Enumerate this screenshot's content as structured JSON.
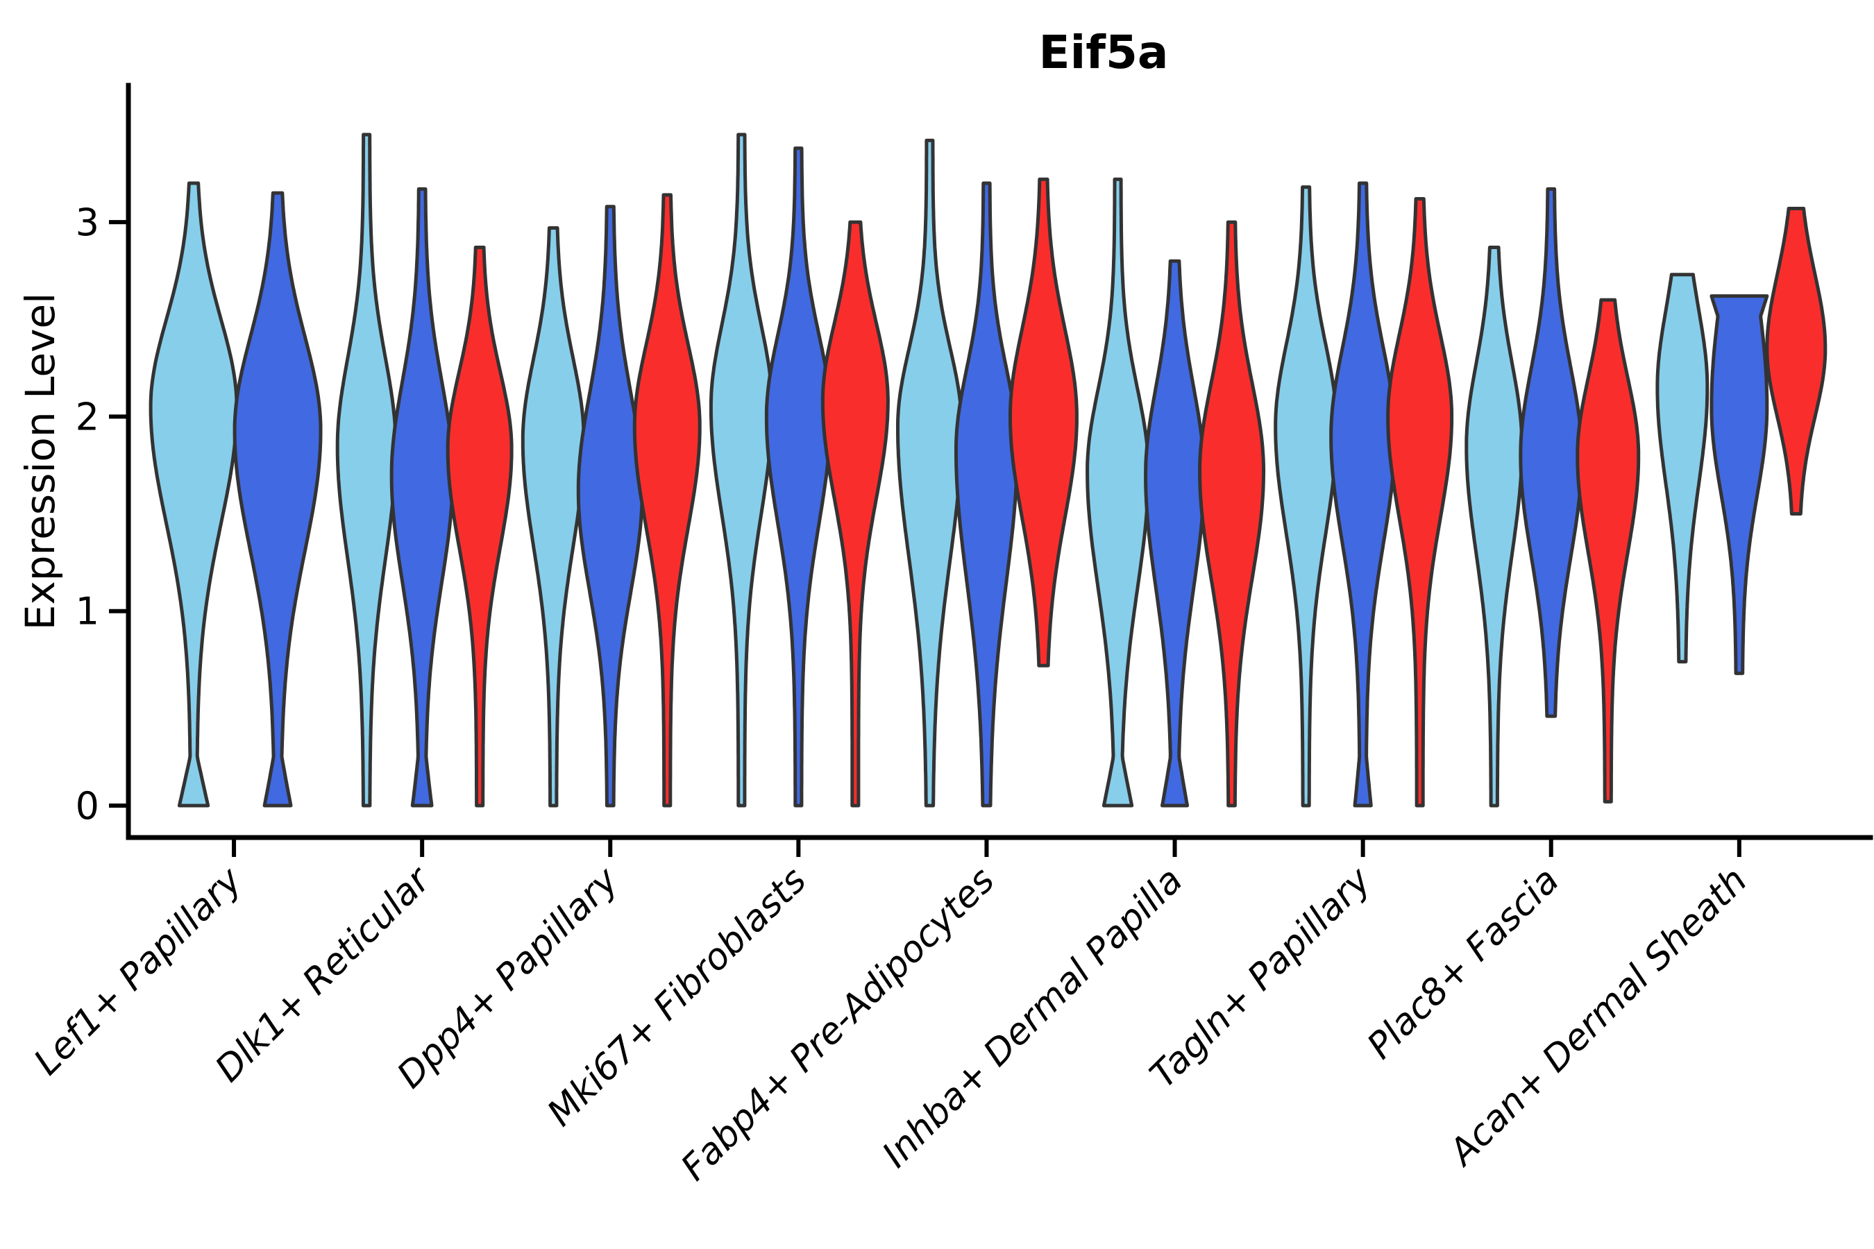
{
  "title": "Eif5a",
  "ylabel": "Expression Level",
  "palette": {
    "skyblue": "#87CEEB",
    "royalblue": "#4169E1",
    "red": "#FA2D2D",
    "edge": "#333333"
  },
  "chart_data": {
    "type": "violin",
    "title": "Eif5a",
    "xlabel": "",
    "ylabel": "Expression Level",
    "ylim": [
      -0.16,
      3.73
    ],
    "yticks": [
      0,
      1,
      2,
      3
    ],
    "grid": false,
    "legend": "none",
    "categories": [
      "Lef1+ Papillary",
      "Dlk1+ Reticular",
      "Dpp4+ Papillary",
      "Mki67+ Fibroblasts",
      "Fabp4+ Pre-Adipocytes",
      "Inhba+ Dermal Papilla",
      "Tagln+ Papillary",
      "Plac8+ Fascia",
      "Acan+ Dermal Sheath"
    ],
    "series": [
      {
        "name": "series_1",
        "color_key": "skyblue"
      },
      {
        "name": "series_2",
        "color_key": "royalblue"
      },
      {
        "name": "series_3",
        "color_key": "red"
      }
    ],
    "violins": [
      {
        "group": 0,
        "color_key": "skyblue",
        "offset": -58,
        "half_width": 62,
        "min": 0,
        "max": 3.2,
        "mode": 2.05,
        "sigma_lo": 0.6,
        "sigma_hi": 0.45,
        "bump0": 16,
        "flat_top": 0
      },
      {
        "group": 0,
        "color_key": "royalblue",
        "offset": 63,
        "half_width": 62,
        "min": 0,
        "max": 3.15,
        "mode": 1.93,
        "sigma_lo": 0.62,
        "sigma_hi": 0.48,
        "bump0": 14,
        "flat_top": 0
      },
      {
        "group": 1,
        "color_key": "skyblue",
        "offset": -80,
        "half_width": 42,
        "min": 0,
        "max": 3.45,
        "mode": 1.85,
        "sigma_lo": 0.58,
        "sigma_hi": 0.45,
        "bump0": 0,
        "flat_top": 0
      },
      {
        "group": 1,
        "color_key": "royalblue",
        "offset": 0,
        "half_width": 44,
        "min": 0,
        "max": 3.17,
        "mode": 1.7,
        "sigma_lo": 0.55,
        "sigma_hi": 0.48,
        "bump0": 9,
        "flat_top": 0
      },
      {
        "group": 1,
        "color_key": "red",
        "offset": 83,
        "half_width": 46,
        "min": 0,
        "max": 2.87,
        "mode": 1.83,
        "sigma_lo": 0.5,
        "sigma_hi": 0.4,
        "bump0": 0,
        "flat_top": 0
      },
      {
        "group": 2,
        "color_key": "skyblue",
        "offset": -82,
        "half_width": 44,
        "min": 0,
        "max": 2.97,
        "mode": 1.88,
        "sigma_lo": 0.55,
        "sigma_hi": 0.42,
        "bump0": 0,
        "flat_top": 0
      },
      {
        "group": 2,
        "color_key": "royalblue",
        "offset": 0,
        "half_width": 46,
        "min": 0,
        "max": 3.08,
        "mode": 1.62,
        "sigma_lo": 0.52,
        "sigma_hi": 0.5,
        "bump0": 0,
        "flat_top": 0
      },
      {
        "group": 2,
        "color_key": "red",
        "offset": 82,
        "half_width": 47,
        "min": 0,
        "max": 3.14,
        "mode": 1.95,
        "sigma_lo": 0.52,
        "sigma_hi": 0.42,
        "bump0": 0,
        "flat_top": 0
      },
      {
        "group": 3,
        "color_key": "skyblue",
        "offset": -82,
        "half_width": 44,
        "min": 0,
        "max": 3.45,
        "mode": 2.05,
        "sigma_lo": 0.55,
        "sigma_hi": 0.42,
        "bump0": 0,
        "flat_top": 0
      },
      {
        "group": 3,
        "color_key": "royalblue",
        "offset": 0,
        "half_width": 46,
        "min": 0,
        "max": 3.38,
        "mode": 2.0,
        "sigma_lo": 0.55,
        "sigma_hi": 0.42,
        "bump0": 0,
        "flat_top": 0
      },
      {
        "group": 3,
        "color_key": "red",
        "offset": 82,
        "half_width": 47,
        "min": 0,
        "max": 3.0,
        "mode": 2.08,
        "sigma_lo": 0.5,
        "sigma_hi": 0.4,
        "bump0": 0,
        "flat_top": 0
      },
      {
        "group": 4,
        "color_key": "skyblue",
        "offset": -82,
        "half_width": 46,
        "min": 0,
        "max": 3.42,
        "mode": 1.95,
        "sigma_lo": 0.68,
        "sigma_hi": 0.4,
        "bump0": 0,
        "flat_top": 0
      },
      {
        "group": 4,
        "color_key": "royalblue",
        "offset": 0,
        "half_width": 44,
        "min": 0,
        "max": 3.2,
        "mode": 1.83,
        "sigma_lo": 0.68,
        "sigma_hi": 0.42,
        "bump0": 0,
        "flat_top": 0
      },
      {
        "group": 4,
        "color_key": "red",
        "offset": 82,
        "half_width": 48,
        "min": 0.72,
        "max": 3.22,
        "mode": 2.0,
        "sigma_lo": 0.52,
        "sigma_hi": 0.45,
        "bump0": 0,
        "flat_top": 0
      },
      {
        "group": 5,
        "color_key": "skyblue",
        "offset": -82,
        "half_width": 44,
        "min": 0,
        "max": 3.22,
        "mode": 1.72,
        "sigma_lo": 0.6,
        "sigma_hi": 0.42,
        "bump0": 15,
        "flat_top": 0
      },
      {
        "group": 5,
        "color_key": "royalblue",
        "offset": 0,
        "half_width": 42,
        "min": 0,
        "max": 2.8,
        "mode": 1.7,
        "sigma_lo": 0.58,
        "sigma_hi": 0.45,
        "bump0": 13,
        "flat_top": 0
      },
      {
        "group": 5,
        "color_key": "red",
        "offset": 82,
        "half_width": 46,
        "min": 0,
        "max": 3.0,
        "mode": 1.72,
        "sigma_lo": 0.55,
        "sigma_hi": 0.45,
        "bump0": 0,
        "flat_top": 0
      },
      {
        "group": 6,
        "color_key": "skyblue",
        "offset": -82,
        "half_width": 44,
        "min": 0,
        "max": 3.18,
        "mode": 1.95,
        "sigma_lo": 0.55,
        "sigma_hi": 0.42,
        "bump0": 0,
        "flat_top": 0
      },
      {
        "group": 6,
        "color_key": "royalblue",
        "offset": 0,
        "half_width": 46,
        "min": 0,
        "max": 3.2,
        "mode": 1.9,
        "sigma_lo": 0.55,
        "sigma_hi": 0.45,
        "bump0": 7,
        "flat_top": 0
      },
      {
        "group": 6,
        "color_key": "red",
        "offset": 82,
        "half_width": 46,
        "min": 0,
        "max": 3.12,
        "mode": 2.0,
        "sigma_lo": 0.52,
        "sigma_hi": 0.42,
        "bump0": 0,
        "flat_top": 0
      },
      {
        "group": 7,
        "color_key": "skyblue",
        "offset": -82,
        "half_width": 40,
        "min": 0,
        "max": 2.87,
        "mode": 1.85,
        "sigma_lo": 0.55,
        "sigma_hi": 0.42,
        "bump0": 0,
        "flat_top": 0
      },
      {
        "group": 7,
        "color_key": "royalblue",
        "offset": 0,
        "half_width": 44,
        "min": 0.46,
        "max": 3.17,
        "mode": 1.8,
        "sigma_lo": 0.52,
        "sigma_hi": 0.45,
        "bump0": 0,
        "flat_top": 0
      },
      {
        "group": 7,
        "color_key": "red",
        "offset": 82,
        "half_width": 44,
        "min": 0.02,
        "max": 2.6,
        "mode": 1.8,
        "sigma_lo": 0.5,
        "sigma_hi": 0.4,
        "bump0": 0,
        "flat_top": 0
      },
      {
        "group": 8,
        "color_key": "skyblue",
        "offset": -82,
        "half_width": 36,
        "min": 0.74,
        "max": 2.73,
        "mode": 2.15,
        "sigma_lo": 0.5,
        "sigma_hi": 0.4,
        "bump0": 0,
        "flat_top": 10
      },
      {
        "group": 8,
        "color_key": "royalblue",
        "offset": 0,
        "half_width": 40,
        "min": 0.68,
        "max": 2.62,
        "mode": 2.05,
        "sigma_lo": 0.45,
        "sigma_hi": 0.6,
        "bump0": 0,
        "flat_top": 40
      },
      {
        "group": 8,
        "color_key": "red",
        "offset": 82,
        "half_width": 42,
        "min": 1.5,
        "max": 3.07,
        "mode": 2.35,
        "sigma_lo": 0.35,
        "sigma_hi": 0.38,
        "bump0": 0,
        "flat_top": 0
      }
    ]
  }
}
